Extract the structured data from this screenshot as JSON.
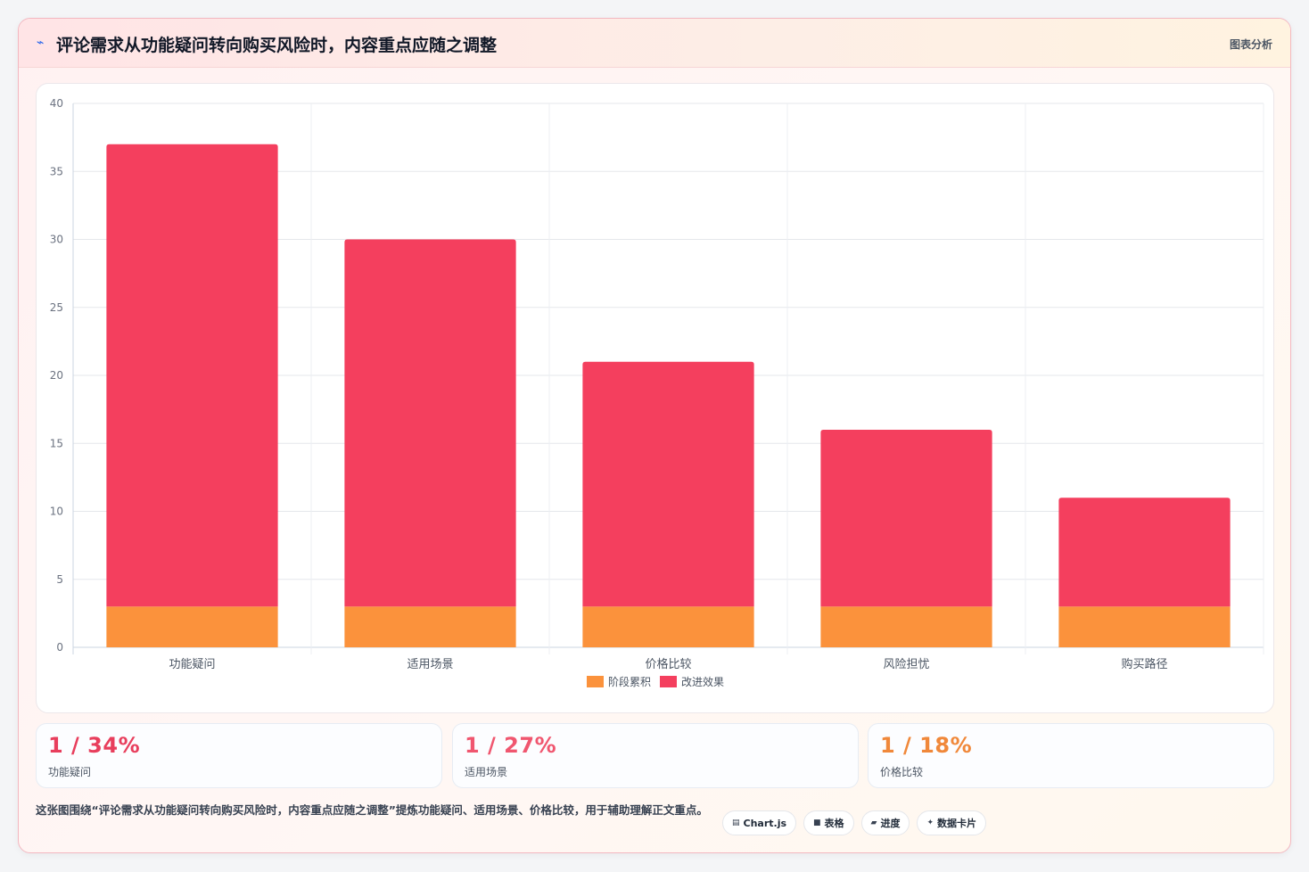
{
  "header": {
    "icon": "chart-line-icon",
    "title": "评论需求从功能疑问转向购买风险时，内容重点应随之调整",
    "tag": "图表分析"
  },
  "chart_data": {
    "type": "bar",
    "stacked": true,
    "categories": [
      "功能疑问",
      "适用场景",
      "价格比较",
      "风险担忧",
      "购买路径"
    ],
    "series": [
      {
        "name": "阶段累积",
        "values": [
          3,
          3,
          3,
          3,
          3
        ],
        "color": "#fb923c"
      },
      {
        "name": "改进效果",
        "values": [
          34,
          27,
          18,
          13,
          8
        ],
        "color": "#f43f5e"
      }
    ],
    "ylim": [
      0,
      40
    ],
    "yticks": [
      0,
      5,
      10,
      15,
      20,
      25,
      30,
      35,
      40
    ],
    "grid": true,
    "legend_position": "bottom"
  },
  "stats": [
    {
      "value": "1 / 34%",
      "label": "功能疑问",
      "color": "#e83e5c"
    },
    {
      "value": "1 / 27%",
      "label": "适用场景",
      "color": "#f0566f"
    },
    {
      "value": "1 / 18%",
      "label": "价格比较",
      "color": "#f0883a"
    }
  ],
  "footer": {
    "text": "这张图围绕“评论需求从功能疑问转向购买风险时，内容重点应随之调整”提炼功能疑问、适用场景、价格比较，用于辅助理解正文重点。",
    "chips": [
      {
        "icon": "chart-icon",
        "glyph": "▤",
        "label": "Chart.js"
      },
      {
        "icon": "table-icon",
        "glyph": "■",
        "label": "表格"
      },
      {
        "icon": "progress-icon",
        "glyph": "▰",
        "label": "进度"
      },
      {
        "icon": "sparkle-icon",
        "glyph": "✦",
        "label": "数据卡片"
      }
    ]
  }
}
